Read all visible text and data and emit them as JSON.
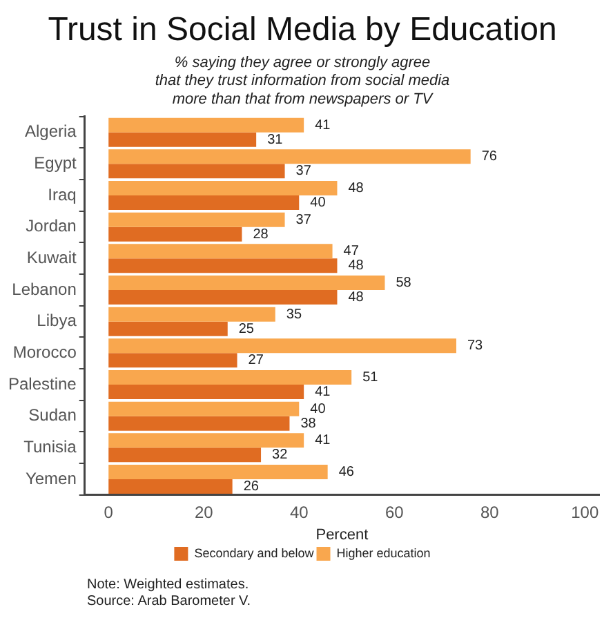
{
  "chart_data": {
    "type": "bar",
    "orientation": "horizontal",
    "title": "Trust in Social Media by Education",
    "subtitle": "% saying they agree or strongly agree\nthat they trust information from social media\nmore than that from newspapers or TV",
    "xlabel": "Percent",
    "categories": [
      "Algeria",
      "Egypt",
      "Iraq",
      "Jordan",
      "Kuwait",
      "Lebanon",
      "Libya",
      "Morocco",
      "Palestine",
      "Sudan",
      "Tunisia",
      "Yemen"
    ],
    "series": [
      {
        "name": "Secondary and below",
        "color": "#e06c22",
        "values": [
          31,
          37,
          40,
          28,
          48,
          48,
          25,
          27,
          41,
          38,
          32,
          26
        ]
      },
      {
        "name": "Higher education",
        "color": "#f9a74e",
        "values": [
          41,
          76,
          48,
          37,
          47,
          58,
          35,
          73,
          51,
          40,
          41,
          46
        ]
      }
    ],
    "xlim": [
      -5,
      103
    ],
    "xticks": [
      0,
      20,
      40,
      60,
      80,
      100
    ],
    "grid": false,
    "legend": "bottom",
    "data_labels": true,
    "annotations": [
      "Note: Weighted estimates.",
      "Source: Arab Barometer V."
    ]
  }
}
